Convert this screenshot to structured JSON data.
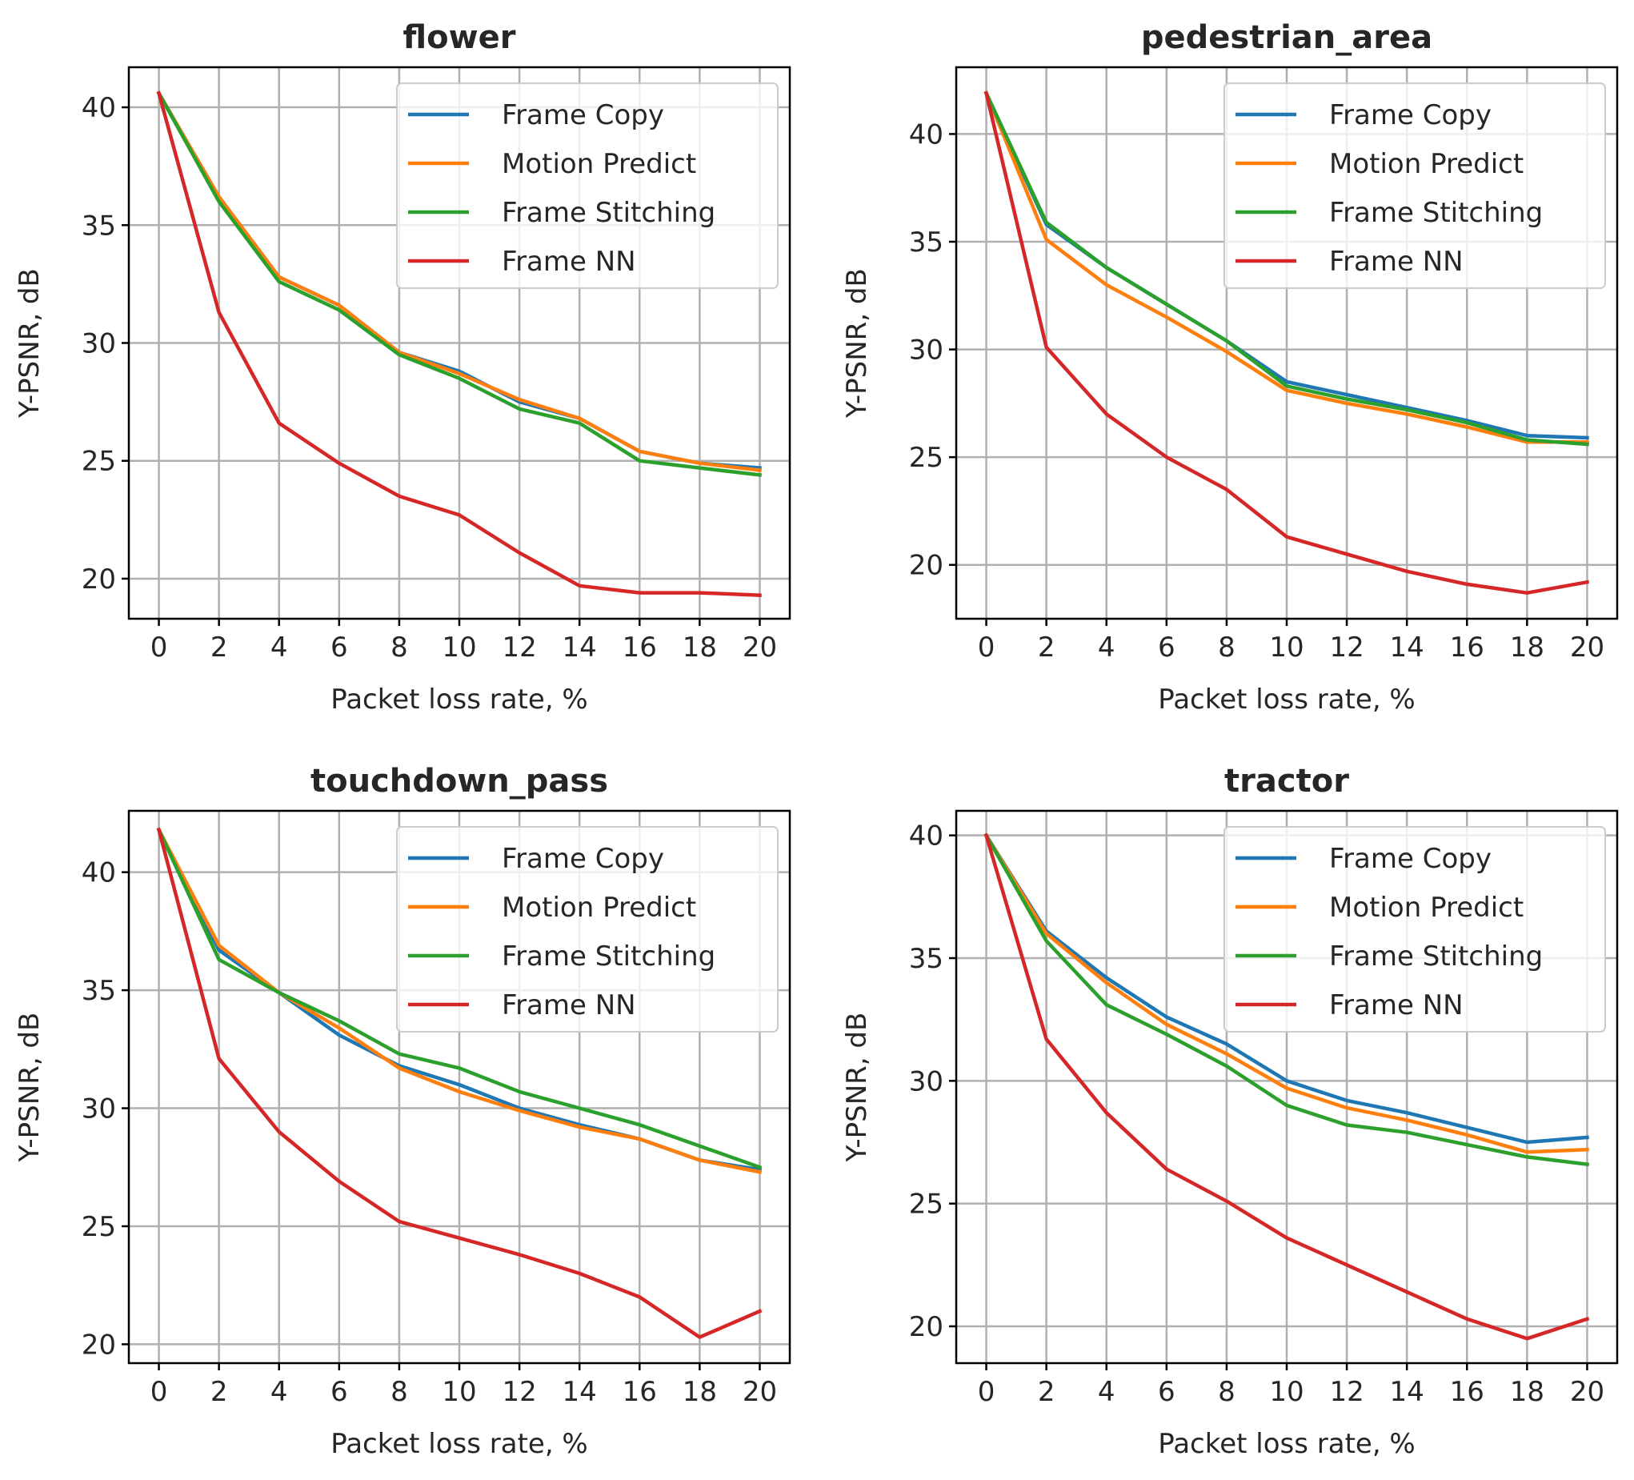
{
  "chart_data": [
    {
      "type": "line",
      "title": "flower",
      "xlabel": "Packet loss rate, %",
      "ylabel": "Y-PSNR, dB",
      "x": [
        0,
        2,
        4,
        6,
        8,
        10,
        12,
        14,
        16,
        18,
        20
      ],
      "xticks": [
        "0",
        "2",
        "4",
        "6",
        "8",
        "10",
        "12",
        "14",
        "16",
        "18",
        "20"
      ],
      "yticks": [
        "20",
        "25",
        "30",
        "35",
        "40"
      ],
      "ytick_values": [
        20,
        25,
        30,
        35,
        40
      ],
      "xlim": [
        -1.0,
        21.0
      ],
      "ylim": [
        18.3,
        41.7
      ],
      "grid": true,
      "legend_position": "top-right",
      "series": [
        {
          "name": "Frame Copy",
          "color": "#1f77b4",
          "values": [
            40.6,
            36.2,
            32.8,
            31.6,
            29.6,
            28.8,
            27.5,
            26.8,
            25.4,
            24.9,
            24.7
          ]
        },
        {
          "name": "Motion Predict",
          "color": "#ff7f0e",
          "values": [
            40.6,
            36.2,
            32.8,
            31.6,
            29.6,
            28.7,
            27.6,
            26.8,
            25.4,
            24.9,
            24.6
          ]
        },
        {
          "name": "Frame Stitching",
          "color": "#2ca02c",
          "values": [
            40.6,
            36.0,
            32.6,
            31.4,
            29.5,
            28.5,
            27.2,
            26.6,
            25.0,
            24.7,
            24.4
          ]
        },
        {
          "name": "Frame NN",
          "color": "#d62728",
          "values": [
            40.6,
            31.3,
            26.6,
            24.9,
            23.5,
            22.7,
            21.1,
            19.7,
            19.4,
            19.4,
            19.3
          ]
        }
      ]
    },
    {
      "type": "line",
      "title": "pedestrian_area",
      "xlabel": "Packet loss rate, %",
      "ylabel": "Y-PSNR, dB",
      "x": [
        0,
        2,
        4,
        6,
        8,
        10,
        12,
        14,
        16,
        18,
        20
      ],
      "xticks": [
        "0",
        "2",
        "4",
        "6",
        "8",
        "10",
        "12",
        "14",
        "16",
        "18",
        "20"
      ],
      "yticks": [
        "20",
        "25",
        "30",
        "35",
        "40"
      ],
      "ytick_values": [
        20,
        25,
        30,
        35,
        40
      ],
      "xlim": [
        -1.0,
        21.0
      ],
      "ylim": [
        17.5,
        43.1
      ],
      "grid": true,
      "legend_position": "top-right",
      "series": [
        {
          "name": "Frame Copy",
          "color": "#1f77b4",
          "values": [
            41.9,
            35.8,
            33.8,
            32.1,
            30.4,
            28.5,
            27.9,
            27.3,
            26.7,
            26.0,
            25.9
          ]
        },
        {
          "name": "Motion Predict",
          "color": "#ff7f0e",
          "values": [
            41.9,
            35.1,
            33.0,
            31.5,
            29.9,
            28.1,
            27.5,
            27.0,
            26.4,
            25.7,
            25.7
          ]
        },
        {
          "name": "Frame Stitching",
          "color": "#2ca02c",
          "values": [
            41.9,
            35.9,
            33.8,
            32.1,
            30.4,
            28.3,
            27.7,
            27.2,
            26.6,
            25.8,
            25.6
          ]
        },
        {
          "name": "Frame NN",
          "color": "#d62728",
          "values": [
            41.9,
            30.1,
            27.0,
            25.0,
            23.5,
            21.3,
            20.5,
            19.7,
            19.1,
            18.7,
            19.2
          ]
        }
      ]
    },
    {
      "type": "line",
      "title": "touchdown_pass",
      "xlabel": "Packet loss rate, %",
      "ylabel": "Y-PSNR, dB",
      "x": [
        0,
        2,
        4,
        6,
        8,
        10,
        12,
        14,
        16,
        18,
        20
      ],
      "xticks": [
        "0",
        "2",
        "4",
        "6",
        "8",
        "10",
        "12",
        "14",
        "16",
        "18",
        "20"
      ],
      "yticks": [
        "20",
        "25",
        "30",
        "35",
        "40"
      ],
      "ytick_values": [
        20,
        25,
        30,
        35,
        40
      ],
      "xlim": [
        -1.0,
        21.0
      ],
      "ylim": [
        19.2,
        42.6
      ],
      "grid": true,
      "legend_position": "top-right",
      "series": [
        {
          "name": "Frame Copy",
          "color": "#1f77b4",
          "values": [
            41.8,
            36.7,
            34.9,
            33.1,
            31.8,
            31.0,
            30.0,
            29.3,
            28.7,
            27.8,
            27.4
          ]
        },
        {
          "name": "Motion Predict",
          "color": "#ff7f0e",
          "values": [
            41.8,
            36.9,
            34.9,
            33.4,
            31.7,
            30.7,
            29.9,
            29.2,
            28.7,
            27.8,
            27.3
          ]
        },
        {
          "name": "Frame Stitching",
          "color": "#2ca02c",
          "values": [
            41.8,
            36.3,
            34.9,
            33.7,
            32.3,
            31.7,
            30.7,
            30.0,
            29.3,
            28.4,
            27.5
          ]
        },
        {
          "name": "Frame NN",
          "color": "#d62728",
          "values": [
            41.8,
            32.1,
            29.0,
            26.9,
            25.2,
            24.5,
            23.8,
            23.0,
            22.0,
            20.3,
            21.4
          ]
        }
      ]
    },
    {
      "type": "line",
      "title": "tractor",
      "xlabel": "Packet loss rate, %",
      "ylabel": "Y-PSNR, dB",
      "x": [
        0,
        2,
        4,
        6,
        8,
        10,
        12,
        14,
        16,
        18,
        20
      ],
      "xticks": [
        "0",
        "2",
        "4",
        "6",
        "8",
        "10",
        "12",
        "14",
        "16",
        "18",
        "20"
      ],
      "yticks": [
        "20",
        "25",
        "30",
        "35",
        "40"
      ],
      "ytick_values": [
        20,
        25,
        30,
        35,
        40
      ],
      "xlim": [
        -1.0,
        21.0
      ],
      "ylim": [
        18.5,
        41.0
      ],
      "grid": true,
      "legend_position": "top-right",
      "series": [
        {
          "name": "Frame Copy",
          "color": "#1f77b4",
          "values": [
            40.0,
            36.1,
            34.2,
            32.6,
            31.5,
            30.0,
            29.2,
            28.7,
            28.1,
            27.5,
            27.7
          ]
        },
        {
          "name": "Motion Predict",
          "color": "#ff7f0e",
          "values": [
            40.0,
            36.0,
            34.0,
            32.3,
            31.1,
            29.7,
            28.9,
            28.4,
            27.8,
            27.1,
            27.2
          ]
        },
        {
          "name": "Frame Stitching",
          "color": "#2ca02c",
          "values": [
            40.0,
            35.7,
            33.1,
            31.9,
            30.6,
            29.0,
            28.2,
            27.9,
            27.4,
            26.9,
            26.6
          ]
        },
        {
          "name": "Frame NN",
          "color": "#d62728",
          "values": [
            40.0,
            31.7,
            28.7,
            26.4,
            25.1,
            23.6,
            22.5,
            21.4,
            20.3,
            19.5,
            20.3
          ]
        }
      ]
    }
  ]
}
